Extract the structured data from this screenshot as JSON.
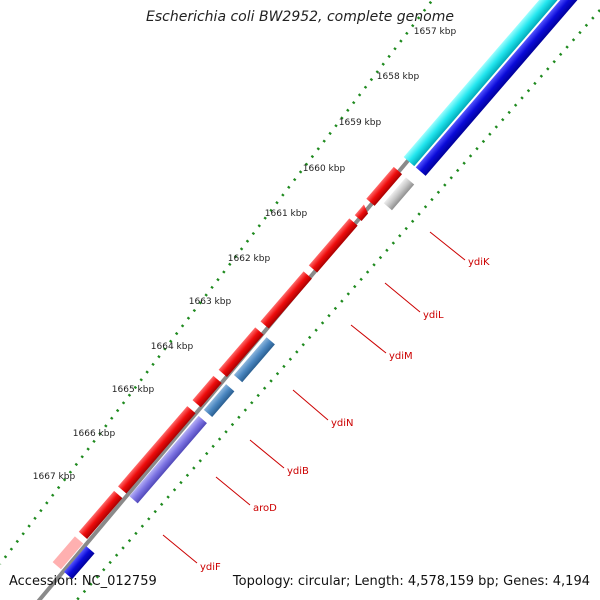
{
  "title": "Escherichia coli BW2952, complete genome",
  "footer": {
    "accession": "Accession: NC_012759",
    "summary": "Topology: circular; Length: 4,578,159 bp; Genes: 4,194"
  },
  "colors": {
    "backbone": "#8a8a8a",
    "tick": "#1f8a1f",
    "gene_red": "#ee1111",
    "label": "#cc0000"
  },
  "ruler_labels": [
    "1657 kbp",
    "1658 kbp",
    "1659 kbp",
    "1660 kbp",
    "1661 kbp",
    "1662 kbp",
    "1663 kbp",
    "1664 kbp",
    "1665 kbp",
    "1666 kbp",
    "1667 kbp"
  ],
  "gene_labels": [
    "ydiK",
    "ydiL",
    "ydiM",
    "ydiN",
    "ydiB",
    "aroD",
    "ydiF"
  ]
}
